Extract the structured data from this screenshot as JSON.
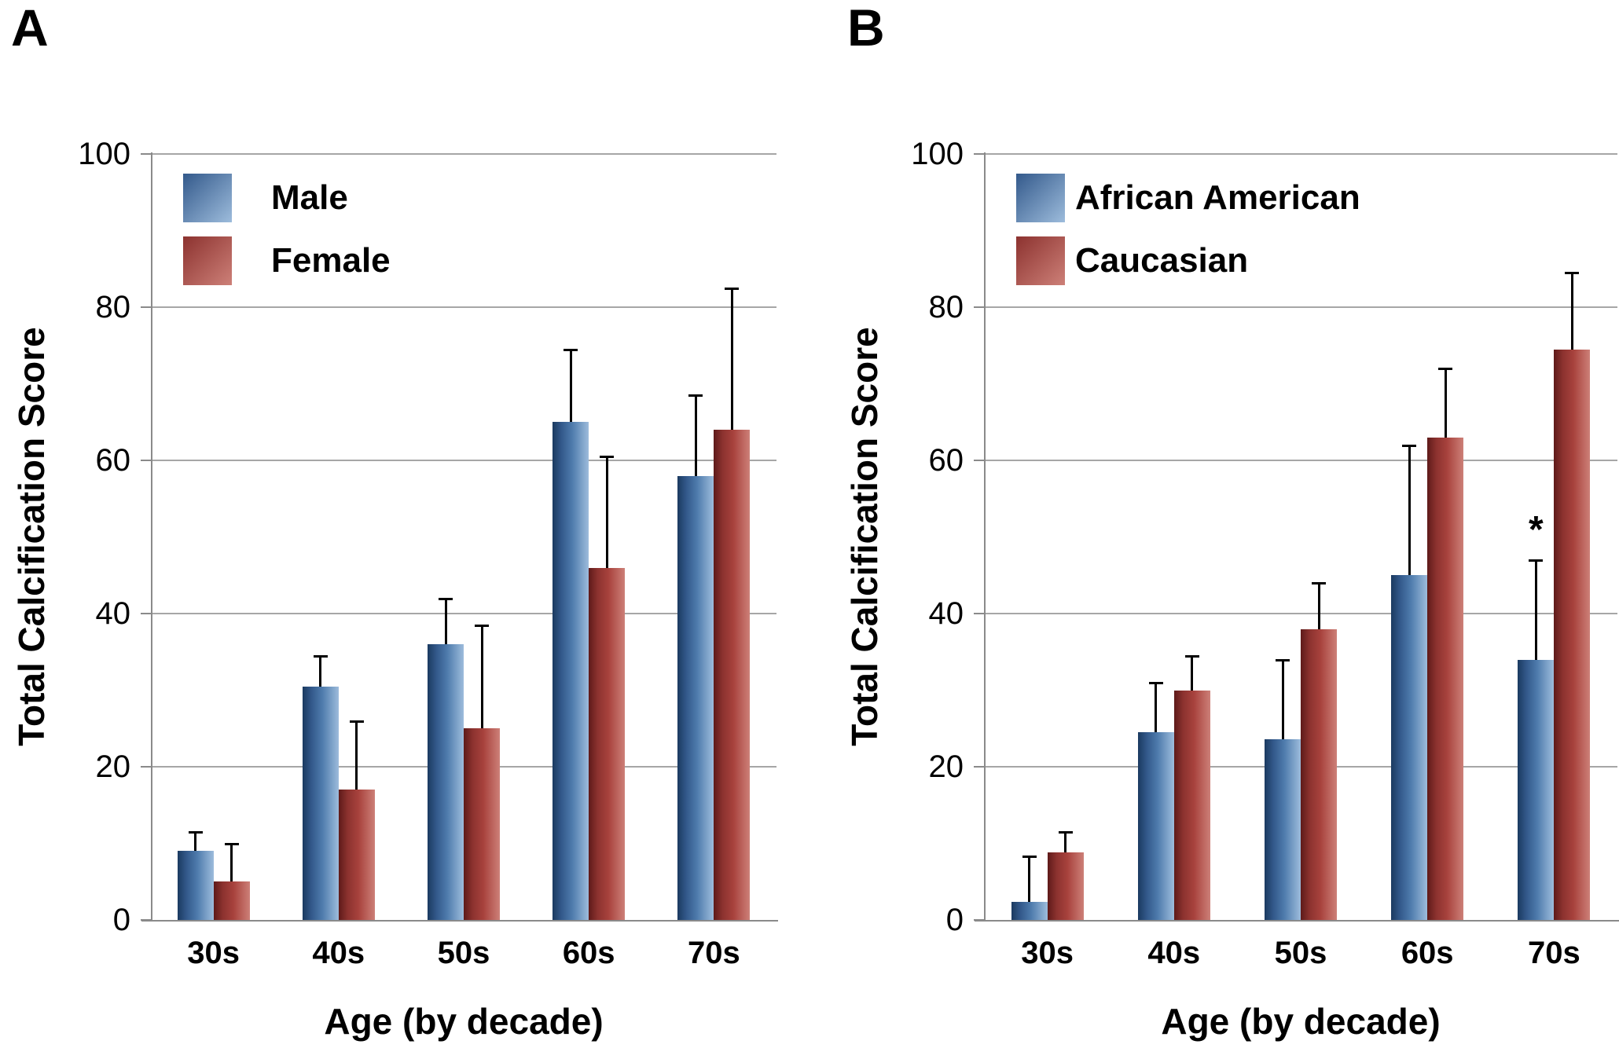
{
  "chart_data": [
    {
      "type": "bar",
      "panel_label": "A",
      "title": "",
      "xlabel": "Age (by decade)",
      "ylabel": "Total Calcification Score",
      "categories": [
        "30s",
        "40s",
        "50s",
        "60s",
        "70s"
      ],
      "y_ticks": [
        "0",
        "20",
        "40",
        "60",
        "80",
        "100"
      ],
      "ylim": [
        0,
        100
      ],
      "ytick_step": 20,
      "grid": true,
      "legend_position": "top-left-inside",
      "series": [
        {
          "name": "Male",
          "color": "#4f81bd",
          "gradient": [
            "#1b3a60",
            "#33598b",
            "#4f7cad",
            "#9dbcdc"
          ],
          "values": [
            9,
            30.5,
            36,
            65,
            58
          ],
          "error_upper": [
            2.5,
            4,
            6,
            9.5,
            10.5
          ]
        },
        {
          "name": "Female",
          "color": "#c0504d",
          "gradient": [
            "#5e1a19",
            "#8c322f",
            "#a8423d",
            "#cd8078"
          ],
          "values": [
            5,
            17,
            25,
            46,
            64
          ],
          "error_upper": [
            5,
            9,
            13.5,
            14.5,
            18.5
          ]
        }
      ],
      "annotations": []
    },
    {
      "type": "bar",
      "panel_label": "B",
      "title": "",
      "xlabel": "Age (by decade)",
      "ylabel": "Total Calcification Score",
      "categories": [
        "30s",
        "40s",
        "50s",
        "60s",
        "70s"
      ],
      "y_ticks": [
        "0",
        "20",
        "40",
        "60",
        "80",
        "100"
      ],
      "ylim": [
        0,
        100
      ],
      "ytick_step": 20,
      "grid": true,
      "legend_position": "top-left-inside",
      "series": [
        {
          "name": "African American",
          "color": "#4f81bd",
          "gradient": [
            "#1b3a60",
            "#33598b",
            "#4f7cad",
            "#9dbcdc"
          ],
          "values": [
            2.4,
            24.5,
            23.6,
            45,
            34
          ],
          "error_upper": [
            5.9,
            6.5,
            10.4,
            17,
            13
          ]
        },
        {
          "name": "Caucasian",
          "color": "#c0504d",
          "gradient": [
            "#5e1a19",
            "#8c322f",
            "#a8423d",
            "#cd8078"
          ],
          "values": [
            8.8,
            30,
            38,
            63,
            74.5
          ],
          "error_upper": [
            2.7,
            4.5,
            6,
            9,
            10
          ]
        }
      ],
      "annotations": [
        {
          "text": "*",
          "category": "70s",
          "series": "African American",
          "position": "above-error-bar"
        }
      ]
    }
  ],
  "style": {
    "grid_color": "#a6a6a6",
    "axis_color": "#8a8a8a",
    "error_bar_color": "#000000",
    "background_color": "#ffffff",
    "text_color": "#000000"
  }
}
